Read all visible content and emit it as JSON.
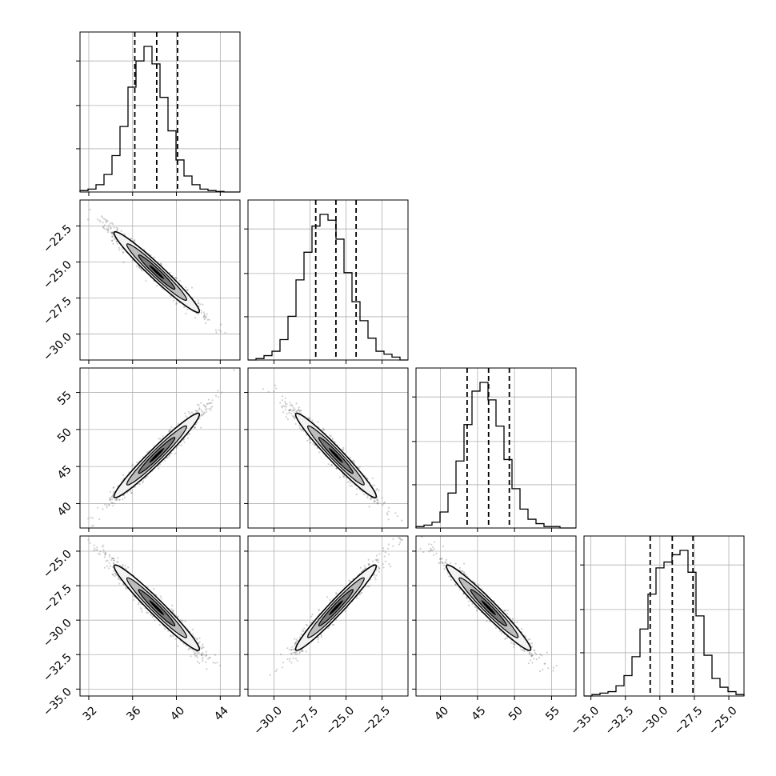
{
  "chart_data": {
    "type": "corner",
    "grid": true,
    "parameters": [
      {
        "range": [
          31.2,
          45.8
        ],
        "ticks": [
          32,
          36,
          40,
          44
        ],
        "tick_labels": [
          "32",
          "36",
          "40",
          "44"
        ],
        "quantiles": [
          36.2,
          38.2,
          40.1
        ],
        "hist": [
          1,
          2,
          5,
          12,
          25,
          45,
          72,
          90,
          100,
          88,
          65,
          42,
          22,
          11,
          5,
          2,
          1,
          0.4,
          0,
          0
        ]
      },
      {
        "range": [
          -31.8,
          -20.7
        ],
        "ticks": [
          -30.0,
          -27.5,
          -25.0,
          -22.5
        ],
        "tick_labels": [
          "−30.0",
          "−27.5",
          "−25.0",
          "−22.5"
        ],
        "quantiles": [
          -27.1,
          -25.7,
          -24.3
        ],
        "hist": [
          0,
          1,
          3,
          6,
          14,
          30,
          55,
          74,
          92,
          100,
          96,
          83,
          60,
          40,
          27,
          15,
          6,
          4,
          2,
          0
        ]
      },
      {
        "range": [
          36.7,
          58.3
        ],
        "ticks": [
          40,
          45,
          50,
          55
        ],
        "tick_labels": [
          "40",
          "45",
          "50",
          "55"
        ],
        "quantiles": [
          43.6,
          46.5,
          49.3
        ],
        "hist": [
          1,
          2,
          4,
          11,
          24,
          46,
          71,
          94,
          100,
          88,
          70,
          47,
          27,
          13,
          6,
          3,
          1,
          1,
          0,
          0
        ]
      },
      {
        "range": [
          -35.5,
          -23.9
        ],
        "ticks": [
          -35.0,
          -32.5,
          -30.0,
          -27.5,
          -25.0
        ],
        "tick_labels": [
          "−35.0",
          "−32.5",
          "−30.0",
          "−27.5",
          "−25.0"
        ],
        "quantiles": [
          -30.7,
          -29.1,
          -27.6
        ],
        "hist": [
          0,
          1,
          2,
          3,
          7,
          14,
          27,
          46,
          70,
          88,
          92,
          97,
          100,
          85,
          55,
          28,
          12,
          6,
          3,
          1
        ]
      }
    ],
    "y_ticks": [
      null,
      {
        "ticks": [
          -30.0,
          -27.5,
          -25.0,
          -22.5
        ],
        "tick_labels": [
          "−30.0",
          "−27.5",
          "−25.0",
          "−22.5"
        ]
      },
      {
        "ticks": [
          40,
          45,
          50,
          55
        ],
        "tick_labels": [
          "40",
          "45",
          "50",
          "55"
        ]
      },
      {
        "ticks": [
          -35.0,
          -32.5,
          -30.0,
          -27.5,
          -25.0
        ],
        "tick_labels": [
          "−35.0",
          "−32.5",
          "−30.0",
          "−27.5",
          "−25.0"
        ]
      }
    ],
    "correlations": [
      {
        "pair": [
          1,
          0
        ],
        "rho": -0.97
      },
      {
        "pair": [
          2,
          0
        ],
        "rho": 0.97
      },
      {
        "pair": [
          2,
          1
        ],
        "rho": -0.97
      },
      {
        "pair": [
          3,
          0
        ],
        "rho": -0.97
      },
      {
        "pair": [
          3,
          1
        ],
        "rho": 0.97
      },
      {
        "pair": [
          3,
          2
        ],
        "rho": -0.97
      }
    ],
    "point_color": "#555555",
    "contour_color": "#000000",
    "fill_colors": [
      "#f2f2f2",
      "#bdbdbd",
      "#7a7a7a",
      "#000000"
    ]
  }
}
